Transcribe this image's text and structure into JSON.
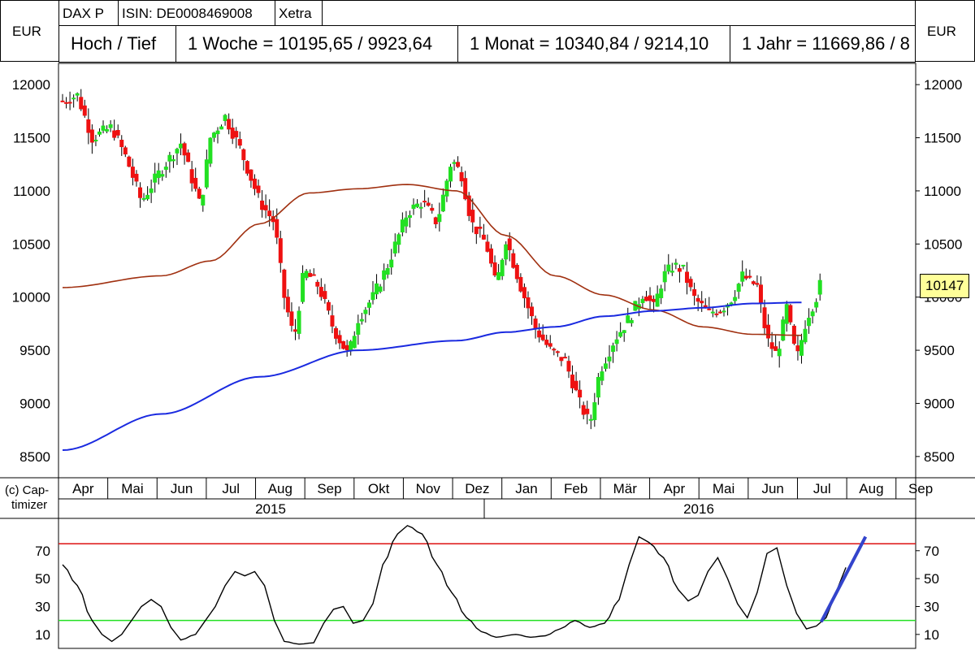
{
  "header": {
    "name": "DAX P",
    "isin": "ISIN: DE0008469008",
    "exchange": "Xetra",
    "currency_left": "EUR",
    "currency_right": "EUR",
    "hl_label": "Hoch / Tief",
    "week": "1 Woche = 10195,65 / 9923,64",
    "month": "1 Monat = 10340,84 / 9214,10",
    "year": "1 Jahr = 11669,86 / 8"
  },
  "copyright": {
    "line1": "(c) Cap-",
    "line2": "timizer"
  },
  "last_price": "10147",
  "colors": {
    "up": "#22e022",
    "down": "#ee1111",
    "ma_short": "#a03010",
    "ma_long": "#1a2ae0",
    "osc": "#000000",
    "upper_band": "#dd1111",
    "lower_band": "#22e022",
    "trend": "#3344cc"
  },
  "chart_data": [
    {
      "type": "candlestick",
      "title": "DAX P",
      "ylabel": "EUR",
      "ylim": [
        8300,
        12200
      ],
      "yticks": [
        "8500",
        "9000",
        "9500",
        "10000",
        "10500",
        "11000",
        "11500",
        "12000"
      ],
      "months": [
        "Apr",
        "Mai",
        "Jun",
        "Jul",
        "Aug",
        "Sep",
        "Okt",
        "Nov",
        "Dez",
        "Jan",
        "Feb",
        "Mär",
        "Apr",
        "Mai",
        "Jun",
        "Jul",
        "Aug",
        "Sep"
      ],
      "years": [
        "2015",
        "2016"
      ],
      "series": [
        {
          "kind": "moving-average",
          "values": [
            [
              0,
              10090
            ],
            [
              2,
              10200
            ],
            [
              3,
              10340
            ],
            [
              4,
              10690
            ],
            [
              5,
              10980
            ],
            [
              6,
              11020
            ],
            [
              7,
              11060
            ],
            [
              8,
              11000
            ],
            [
              9,
              10580
            ],
            [
              10,
              10200
            ],
            [
              11,
              10020
            ],
            [
              12,
              9880
            ],
            [
              13,
              9720
            ],
            [
              14,
              9650
            ],
            [
              15,
              9640
            ]
          ]
        },
        {
          "kind": "moving-average",
          "values": [
            [
              0,
              8560
            ],
            [
              2,
              8900
            ],
            [
              4,
              9250
            ],
            [
              6,
              9500
            ],
            [
              8,
              9590
            ],
            [
              9,
              9670
            ],
            [
              10,
              9720
            ],
            [
              11,
              9820
            ],
            [
              12,
              9870
            ],
            [
              13,
              9900
            ],
            [
              14,
              9940
            ],
            [
              15,
              9950
            ]
          ]
        }
      ],
      "ohlc_path": [
        [
          0,
          11850
        ],
        [
          0.3,
          11900
        ],
        [
          0.6,
          11500
        ],
        [
          1,
          11600
        ],
        [
          1.3,
          11300
        ],
        [
          1.6,
          10900
        ],
        [
          2,
          11200
        ],
        [
          2.4,
          11450
        ],
        [
          2.8,
          10850
        ],
        [
          3,
          11500
        ],
        [
          3.3,
          11700
        ],
        [
          3.6,
          11400
        ],
        [
          4,
          10900
        ],
        [
          4.3,
          10700
        ],
        [
          4.5,
          10000
        ],
        [
          4.7,
          9600
        ],
        [
          4.9,
          10250
        ],
        [
          5.2,
          10100
        ],
        [
          5.5,
          9700
        ],
        [
          5.8,
          9450
        ],
        [
          6,
          9800
        ],
        [
          6.3,
          10000
        ],
        [
          6.6,
          10300
        ],
        [
          7,
          10800
        ],
        [
          7.3,
          10900
        ],
        [
          7.6,
          10700
        ],
        [
          7.9,
          11300
        ],
        [
          8.1,
          11150
        ],
        [
          8.3,
          10700
        ],
        [
          8.6,
          10500
        ],
        [
          8.8,
          10100
        ],
        [
          9,
          10550
        ],
        [
          9.3,
          10100
        ],
        [
          9.6,
          9700
        ],
        [
          9.9,
          9500
        ],
        [
          10.2,
          9400
        ],
        [
          10.5,
          9000
        ],
        [
          10.7,
          8800
        ],
        [
          10.9,
          9300
        ],
        [
          11.2,
          9600
        ],
        [
          11.5,
          9800
        ],
        [
          11.8,
          10050
        ],
        [
          12,
          9900
        ],
        [
          12.2,
          10200
        ],
        [
          12.4,
          10300
        ],
        [
          12.6,
          10250
        ],
        [
          12.8,
          10000
        ],
        [
          13.1,
          9850
        ],
        [
          13.4,
          9900
        ],
        [
          13.6,
          10000
        ],
        [
          13.8,
          10200
        ],
        [
          14.1,
          10100
        ],
        [
          14.3,
          9600
        ],
        [
          14.5,
          9450
        ],
        [
          14.7,
          9900
        ],
        [
          14.9,
          9400
        ],
        [
          15.1,
          9800
        ],
        [
          15.3,
          10000
        ],
        [
          15.4,
          10150
        ]
      ]
    },
    {
      "type": "line",
      "title": "",
      "ylim": [
        0,
        92
      ],
      "yticks": [
        "10",
        "30",
        "50",
        "70"
      ],
      "upper_band": 75,
      "lower_band": 20,
      "values": [
        [
          0,
          60
        ],
        [
          0.3,
          45
        ],
        [
          0.6,
          20
        ],
        [
          0.8,
          10
        ],
        [
          1,
          5
        ],
        [
          1.2,
          10
        ],
        [
          1.4,
          20
        ],
        [
          1.6,
          30
        ],
        [
          1.8,
          35
        ],
        [
          2,
          30
        ],
        [
          2.2,
          15
        ],
        [
          2.4,
          6
        ],
        [
          2.7,
          10
        ],
        [
          2.9,
          20
        ],
        [
          3.1,
          30
        ],
        [
          3.3,
          45
        ],
        [
          3.5,
          55
        ],
        [
          3.7,
          52
        ],
        [
          3.9,
          55
        ],
        [
          4.1,
          45
        ],
        [
          4.3,
          20
        ],
        [
          4.5,
          5
        ],
        [
          4.8,
          3
        ],
        [
          5.1,
          4
        ],
        [
          5.3,
          18
        ],
        [
          5.5,
          28
        ],
        [
          5.7,
          30
        ],
        [
          5.9,
          18
        ],
        [
          6.1,
          20
        ],
        [
          6.3,
          32
        ],
        [
          6.5,
          60
        ],
        [
          6.8,
          82
        ],
        [
          7,
          88
        ],
        [
          7.3,
          82
        ],
        [
          7.6,
          60
        ],
        [
          7.9,
          40
        ],
        [
          8.2,
          22
        ],
        [
          8.5,
          12
        ],
        [
          8.8,
          8
        ],
        [
          9.2,
          10
        ],
        [
          9.5,
          8
        ],
        [
          9.8,
          9
        ],
        [
          10.1,
          14
        ],
        [
          10.4,
          20
        ],
        [
          10.7,
          15
        ],
        [
          11,
          18
        ],
        [
          11.3,
          35
        ],
        [
          11.5,
          60
        ],
        [
          11.7,
          80
        ],
        [
          11.9,
          76
        ],
        [
          12.2,
          65
        ],
        [
          12.5,
          42
        ],
        [
          12.7,
          34
        ],
        [
          12.9,
          38
        ],
        [
          13.1,
          55
        ],
        [
          13.3,
          65
        ],
        [
          13.5,
          50
        ],
        [
          13.7,
          32
        ],
        [
          13.9,
          22
        ],
        [
          14.1,
          40
        ],
        [
          14.3,
          68
        ],
        [
          14.5,
          72
        ],
        [
          14.7,
          45
        ],
        [
          14.9,
          25
        ],
        [
          15.1,
          14
        ],
        [
          15.3,
          16
        ],
        [
          15.5,
          22
        ],
        [
          15.7,
          40
        ],
        [
          15.9,
          58
        ]
      ],
      "trend": [
        [
          15.4,
          19
        ],
        [
          16.3,
          80
        ]
      ]
    }
  ]
}
